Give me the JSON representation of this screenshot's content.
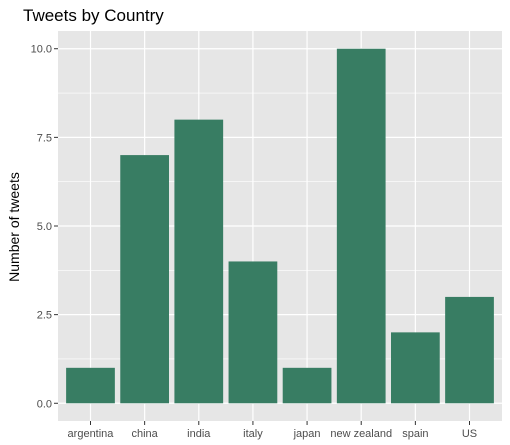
{
  "chart_data": {
    "type": "bar",
    "title": "Tweets by Country",
    "xlabel": "",
    "ylabel": "Number of tweets",
    "categories": [
      "argentina",
      "china",
      "india",
      "italy",
      "japan",
      "new zealand",
      "spain",
      "US"
    ],
    "values": [
      1,
      7,
      8,
      4,
      1,
      10,
      2,
      3
    ],
    "ylim": [
      -0.5,
      10.5
    ],
    "yticks": [
      0,
      2.5,
      5,
      7.5,
      10
    ],
    "ytick_labels": [
      "0.0",
      "2.5",
      "5.0",
      "7.5",
      "10.0"
    ],
    "grid": true,
    "bar_color": "#387d63",
    "panel_color": "#e6e6e6",
    "grid_color": "#ffffff"
  }
}
